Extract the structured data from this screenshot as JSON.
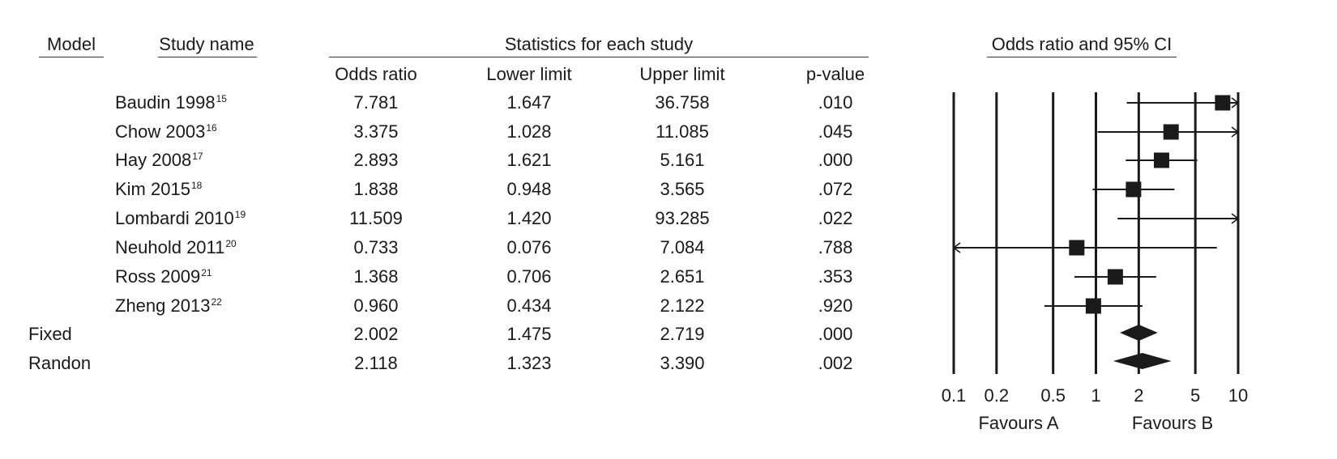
{
  "chart_data": {
    "type": "forest",
    "headers": {
      "model": "Model",
      "study_name": "Study name",
      "statistics_group": "Statistics for each study",
      "odds_ratio": "Odds ratio",
      "lower_limit": "Lower limit",
      "upper_limit": "Upper limit",
      "p_value": "p-value",
      "plot_title": "Odds ratio and 95% CI"
    },
    "studies": [
      {
        "name": "Baudin 1998",
        "ref": "15",
        "or": "7.781",
        "lower": "1.647",
        "upper": "36.758",
        "p": ".010"
      },
      {
        "name": "Chow 2003",
        "ref": "16",
        "or": "3.375",
        "lower": "1.028",
        "upper": "11.085",
        "p": ".045"
      },
      {
        "name": "Hay 2008",
        "ref": "17",
        "or": "2.893",
        "lower": "1.621",
        "upper": "5.161",
        "p": ".000"
      },
      {
        "name": "Kim 2015",
        "ref": "18",
        "or": "1.838",
        "lower": "0.948",
        "upper": "3.565",
        "p": ".072"
      },
      {
        "name": "Lombardi 2010",
        "ref": "19",
        "or": "11.509",
        "lower": "1.420",
        "upper": "93.285",
        "p": ".022"
      },
      {
        "name": "Neuhold 2011",
        "ref": "20",
        "or": "0.733",
        "lower": "0.076",
        "upper": "7.084",
        "p": ".788"
      },
      {
        "name": "Ross 2009",
        "ref": "21",
        "or": "1.368",
        "lower": "0.706",
        "upper": "2.651",
        "p": ".353"
      },
      {
        "name": "Zheng 2013",
        "ref": "22",
        "or": "0.960",
        "lower": "0.434",
        "upper": "2.122",
        "p": ".920"
      }
    ],
    "summaries": [
      {
        "model": "Fixed",
        "or": "2.002",
        "lower": "1.475",
        "upper": "2.719",
        "p": ".000"
      },
      {
        "model": "Randon",
        "or": "2.118",
        "lower": "1.323",
        "upper": "3.390",
        "p": ".002"
      }
    ],
    "x_axis": {
      "scale": "log",
      "range": [
        0.1,
        10
      ],
      "ticks": [
        0.1,
        0.2,
        0.5,
        1,
        2,
        5,
        10
      ],
      "tick_labels": [
        "0.1",
        "0.2",
        "0.5",
        "1",
        "2",
        "5",
        "10"
      ]
    },
    "favours": {
      "left": "Favours A",
      "right": "Favours B"
    },
    "colors": {
      "ink": "#1a1a1a",
      "marker": "#1a1a1a"
    }
  }
}
